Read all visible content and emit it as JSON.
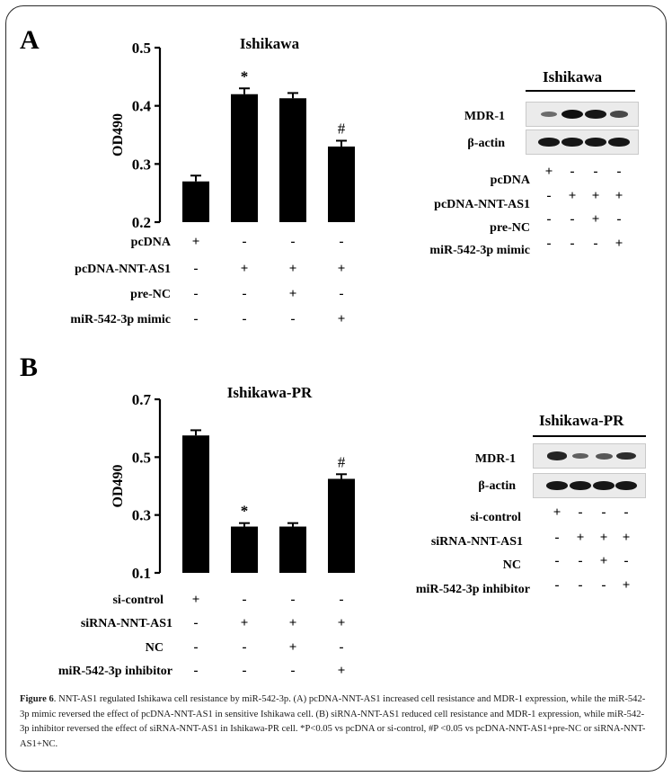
{
  "figure": {
    "caption_label": "Figure 6",
    "caption_text": ". NNT-AS1 regulated Ishikawa cell resistance by miR-542-3p. (A) pcDNA-NNT-AS1 increased cell resistance and MDR-1 expression, while the miR-542-3p mimic reversed the effect of pcDNA-NNT-AS1 in sensitive Ishikawa cell. (B) siRNA-NNT-AS1 reduced cell resistance and MDR-1 expression, while miR-542-3p inhibitor reversed the effect of siRNA-NNT-AS1 in Ishikawa-PR cell. *P<0.05 vs pcDNA or si-control, #P <0.05 vs pcDNA-NNT-AS1+pre-NC or siRNA-NNT-AS1+NC."
  },
  "panel_a": {
    "letter": "A",
    "blot_title": "Ishikawa",
    "blot_rows": [
      "MDR-1",
      "β-actin"
    ],
    "blot_mdr1_levels": [
      0.35,
      1.0,
      0.95,
      0.6
    ],
    "blot_actin_levels": [
      0.95,
      0.95,
      0.95,
      0.95
    ],
    "conditions": [
      {
        "label": "pcDNA",
        "signs": [
          "+",
          "-",
          "-",
          "-"
        ]
      },
      {
        "label": "pcDNA-NNT-AS1",
        "signs": [
          "-",
          "+",
          "+",
          "+"
        ]
      },
      {
        "label": "pre-NC",
        "signs": [
          "-",
          "-",
          "+",
          "-"
        ]
      },
      {
        "label": "miR-542-3p mimic",
        "signs": [
          "-",
          "-",
          "-",
          "+"
        ]
      }
    ]
  },
  "panel_b": {
    "letter": "B",
    "blot_title": "Ishikawa-PR",
    "blot_rows": [
      "MDR-1",
      "β-actin"
    ],
    "blot_mdr1_levels": [
      0.85,
      0.45,
      0.5,
      0.8
    ],
    "blot_actin_levels": [
      0.95,
      0.95,
      0.95,
      0.95
    ],
    "conditions": [
      {
        "label": "si-control",
        "signs": [
          "+",
          "-",
          "-",
          "-"
        ]
      },
      {
        "label": "siRNA-NNT-AS1",
        "signs": [
          "-",
          "+",
          "+",
          "+"
        ]
      },
      {
        "label": "NC",
        "signs": [
          "-",
          "-",
          "+",
          "-"
        ]
      },
      {
        "label": "miR-542-3p inhibitor",
        "signs": [
          "-",
          "-",
          "-",
          "+"
        ]
      }
    ]
  },
  "chart_data": [
    {
      "type": "bar",
      "title": "Ishikawa",
      "ylabel": "OD490",
      "xlabel": "",
      "ylim": [
        0.2,
        0.5
      ],
      "yticks": [
        "0.2",
        "0.3",
        "0.4",
        "0.5"
      ],
      "values": [
        0.27,
        0.42,
        0.413,
        0.33
      ],
      "errors": [
        0.01,
        0.01,
        0.009,
        0.01
      ],
      "annotations": [
        "",
        "*",
        "",
        "#"
      ],
      "color": "#000000"
    },
    {
      "type": "bar",
      "title": "Ishikawa-PR",
      "ylabel": "OD490",
      "xlabel": "",
      "ylim": [
        0.1,
        0.7
      ],
      "yticks": [
        "0.1",
        "0.3",
        "0.5",
        "0.7"
      ],
      "values": [
        0.575,
        0.26,
        0.26,
        0.425
      ],
      "errors": [
        0.018,
        0.012,
        0.012,
        0.016
      ],
      "annotations": [
        "",
        "*",
        "",
        "#"
      ],
      "color": "#000000"
    }
  ]
}
